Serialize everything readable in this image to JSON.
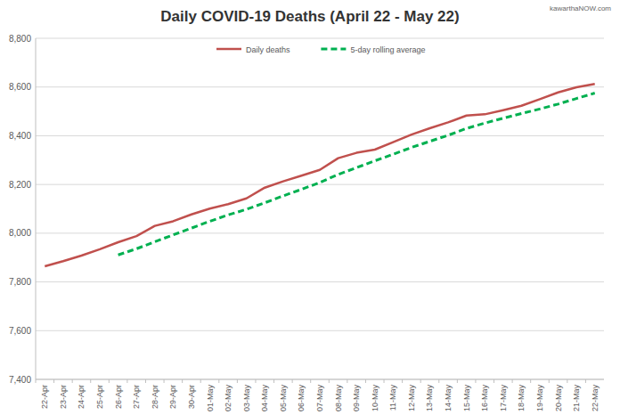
{
  "chart_data": {
    "type": "line",
    "title": "Daily COVID-19 Deaths (April 22 - May 22)",
    "annotation": "kawarthaNOW.com",
    "categories": [
      "22-Apr",
      "23-Apr",
      "24-Apr",
      "25-Apr",
      "26-Apr",
      "27-Apr",
      "28-Apr",
      "29-Apr",
      "30-Apr",
      "01-May",
      "02-May",
      "03-May",
      "04-May",
      "05-May",
      "06-May",
      "07-May",
      "08-May",
      "09-May",
      "10-May",
      "11-May",
      "12-May",
      "13-May",
      "14-May",
      "15-May",
      "16-May",
      "17-May",
      "18-May",
      "19-May",
      "20-May",
      "21-May",
      "22-May"
    ],
    "series": [
      {
        "name": "Daily deaths",
        "color": "#c0504d",
        "line_style": "solid",
        "values": [
          7864,
          7885,
          7908,
          7934,
          7963,
          7988,
          8030,
          8049,
          8077,
          8101,
          8119,
          8143,
          8187,
          8213,
          8236,
          8260,
          8308,
          8330,
          8343,
          8374,
          8405,
          8431,
          8455,
          8483,
          8488,
          8505,
          8523,
          8550,
          8578,
          8599,
          8613
        ]
      },
      {
        "name": "5-day rolling average",
        "color": "#00b050",
        "line_style": "dashed",
        "values": [
          null,
          null,
          null,
          null,
          7911,
          7936,
          7965,
          7993,
          8021,
          8049,
          8075,
          8098,
          8125,
          8153,
          8180,
          8208,
          8241,
          8269,
          8297,
          8324,
          8352,
          8377,
          8402,
          8430,
          8452,
          8472,
          8491,
          8510,
          8530,
          8553,
          8575
        ]
      }
    ],
    "ylim": [
      7400,
      8800
    ],
    "yticks": [
      {
        "value": 7400,
        "label": "7,400"
      },
      {
        "value": 7600,
        "label": "7,600"
      },
      {
        "value": 7800,
        "label": "7,800"
      },
      {
        "value": 8000,
        "label": "8,000"
      },
      {
        "value": 8200,
        "label": "8,200"
      },
      {
        "value": 8400,
        "label": "8,400"
      },
      {
        "value": 8600,
        "label": "8,600"
      },
      {
        "value": 8800,
        "label": "8,800"
      }
    ],
    "grid": true,
    "legend": "top"
  }
}
